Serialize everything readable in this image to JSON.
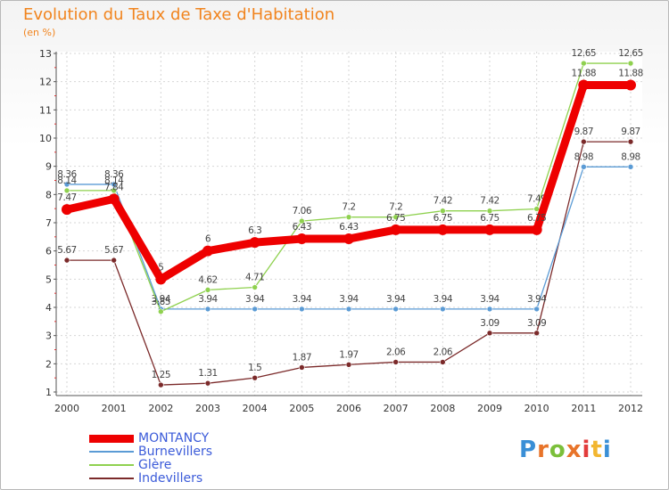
{
  "header": {
    "title": "Evolution du Taux de Taxe d'Habitation",
    "subtitle": "(en %)"
  },
  "chart_data": {
    "type": "line",
    "title": "Evolution du Taux de Taxe d'Habitation",
    "subtitle": "(en %)",
    "xlabel": "",
    "ylabel": "",
    "categories": [
      "2000",
      "2001",
      "2002",
      "2003",
      "2004",
      "2005",
      "2006",
      "2007",
      "2008",
      "2009",
      "2010",
      "2011",
      "2012"
    ],
    "ylim": [
      1,
      13
    ],
    "yticks": [
      1,
      2,
      3,
      4,
      5,
      6,
      7,
      8,
      9,
      10,
      11,
      12,
      13
    ],
    "grid": true,
    "legend_position": "bottom-left",
    "series": [
      {
        "name": "MONTANCY",
        "color": "#ee0000",
        "values": [
          7.47,
          7.84,
          5,
          6,
          6.3,
          6.43,
          6.43,
          6.75,
          6.75,
          6.75,
          6.75,
          11.88,
          11.88
        ],
        "labels": [
          "7.47",
          "7.84",
          "5",
          "6",
          "6.3",
          "6.43",
          "6.43",
          "6.75",
          "6.75",
          "6.75",
          "6.75",
          "11.88",
          "11.88"
        ]
      },
      {
        "name": "Burnevillers",
        "color": "#5b9bd5",
        "values": [
          8.36,
          8.36,
          3.94,
          3.94,
          3.94,
          3.94,
          3.94,
          3.94,
          3.94,
          3.94,
          3.94,
          8.98,
          8.98
        ],
        "labels": [
          "8.36",
          "8.36",
          "3.94",
          "3.94",
          "3.94",
          "3.94",
          "3.94",
          "3.94",
          "3.94",
          "3.94",
          "3.94",
          "8.98",
          "8.98"
        ]
      },
      {
        "name": "Glère",
        "color": "#8fd14f",
        "values": [
          8.14,
          8.14,
          3.85,
          4.62,
          4.71,
          7.06,
          7.2,
          7.2,
          7.42,
          7.42,
          7.49,
          12.65,
          12.65
        ],
        "labels": [
          "8.14",
          "8.14",
          "3.85",
          "4.62",
          "4.71",
          "7.06",
          "7.2",
          "7.2",
          "7.42",
          "7.42",
          "7.49",
          "12.65",
          "12.65"
        ]
      },
      {
        "name": "Indevillers",
        "color": "#7b2a2a",
        "values": [
          5.67,
          5.67,
          1.25,
          1.31,
          1.5,
          1.87,
          1.97,
          2.06,
          2.06,
          3.09,
          3.09,
          9.87,
          9.87
        ],
        "labels": [
          "5.67",
          "5.67",
          "1.25",
          "1.31",
          "1.5",
          "1.87",
          "1.97",
          "2.06",
          "2.06",
          "3.09",
          "3.09",
          "9.87",
          "9.87"
        ]
      }
    ]
  },
  "logo": {
    "text": "Proxiti",
    "colors": [
      "#3a8fd6",
      "#e8742a",
      "#7bbf3a",
      "#e8742a",
      "#e23b3b",
      "#f2b630",
      "#3a8fd6"
    ]
  }
}
